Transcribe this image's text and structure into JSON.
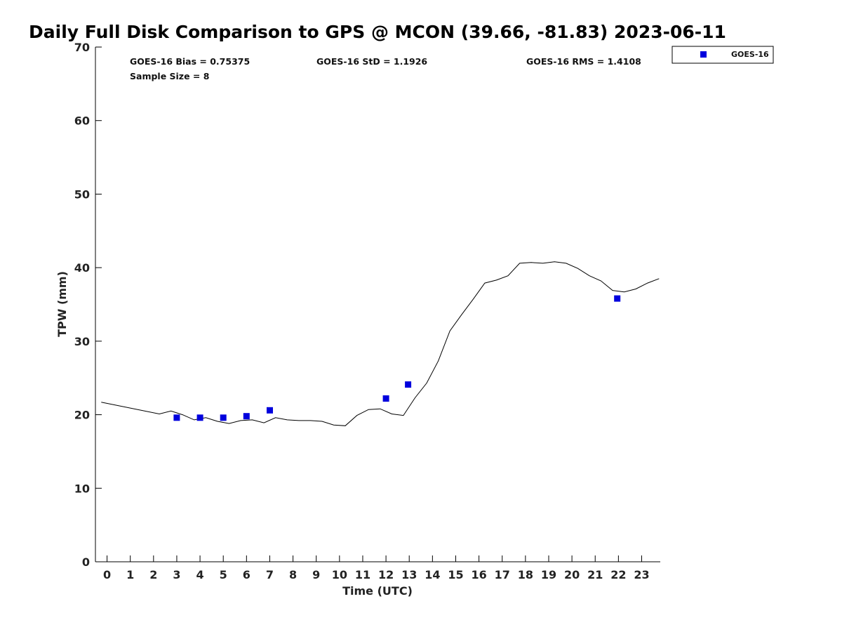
{
  "chart_data": {
    "type": "line",
    "title": "Daily Full Disk Comparison to GPS @ MCON (39.66, -81.83) 2023-06-11",
    "xlabel": "Time (UTC)",
    "ylabel": "TPW (mm)",
    "xlim": [
      -0.5,
      23.8
    ],
    "ylim": [
      0,
      70
    ],
    "x_ticks": [
      0,
      1,
      2,
      3,
      4,
      5,
      6,
      7,
      8,
      9,
      10,
      11,
      12,
      13,
      14,
      15,
      16,
      17,
      18,
      19,
      20,
      21,
      22,
      23
    ],
    "y_ticks": [
      0,
      10,
      20,
      30,
      40,
      50,
      60,
      70
    ],
    "grid": false,
    "legend_position": "outside-top-right",
    "stats": {
      "bias": "GOES-16 Bias = 0.75375",
      "std": "GOES-16 StD = 1.1926",
      "rms": "GOES-16 RMS = 1.4108",
      "sample_size": "Sample Size = 8"
    },
    "series": [
      {
        "type": "line",
        "color": "#000000",
        "x": [
          -0.25,
          2.25,
          2.75,
          3.25,
          3.75,
          4.25,
          4.75,
          5.25,
          5.75,
          6.25,
          6.75,
          7.25,
          7.75,
          8.25,
          8.75,
          9.25,
          9.75,
          10.25,
          10.75,
          11.25,
          11.75,
          12.25,
          12.75,
          13.25,
          13.75,
          14.25,
          14.75,
          15.25,
          15.75,
          16.25,
          16.75,
          17.25,
          17.75,
          18.25,
          18.75,
          19.25,
          19.75,
          20.25,
          20.75,
          21.25,
          21.75,
          22.25,
          22.75,
          23.25,
          23.75
        ],
        "y": [
          21.7,
          20.1,
          20.5,
          20.0,
          19.3,
          19.6,
          19.1,
          18.8,
          19.2,
          19.3,
          18.9,
          19.6,
          19.3,
          19.2,
          19.2,
          19.1,
          18.6,
          18.5,
          19.9,
          20.7,
          20.8,
          20.1,
          19.9,
          22.3,
          24.3,
          27.3,
          31.4,
          33.6,
          35.7,
          37.9,
          38.3,
          38.9,
          40.6,
          40.7,
          40.6,
          40.8,
          40.6,
          39.9,
          38.9,
          38.2,
          36.9,
          36.7,
          37.1,
          37.9,
          38.5
        ]
      },
      {
        "type": "scatter",
        "name": "GOES-16",
        "color": "#0000dd",
        "marker": "square",
        "x": [
          3.0,
          4.0,
          5.0,
          6.0,
          7.0,
          12.0,
          12.95,
          21.95
        ],
        "y": [
          19.6,
          19.6,
          19.6,
          19.8,
          20.6,
          22.2,
          24.1,
          35.8
        ]
      }
    ]
  }
}
